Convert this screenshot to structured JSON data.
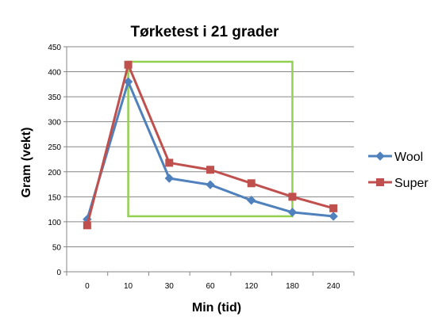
{
  "chart_data": {
    "type": "line",
    "title": "Tørketest i 21 grader",
    "xlabel": "Min (tid)",
    "ylabel": "Gram (vekt)",
    "categories": [
      "0",
      "10",
      "30",
      "60",
      "120",
      "180",
      "240"
    ],
    "ylim": [
      0,
      450
    ],
    "yticks": [
      "0",
      "50",
      "100",
      "150",
      "200",
      "250",
      "300",
      "350",
      "400",
      "450"
    ],
    "grid": true,
    "legend_position": "right",
    "series": [
      {
        "name": "Wool",
        "color": "#4F81BD",
        "marker": "diamond",
        "values": [
          105,
          380,
          187,
          174,
          143,
          119,
          111
        ]
      },
      {
        "name": "Super",
        "color": "#C0504D",
        "marker": "square",
        "values": [
          93,
          414,
          218,
          204,
          177,
          150,
          127
        ]
      }
    ],
    "annotation": {
      "shape": "rectangle",
      "color": "#92D050",
      "x_from": "10",
      "x_to": "180",
      "y_from": 111,
      "y_to": 420
    }
  }
}
